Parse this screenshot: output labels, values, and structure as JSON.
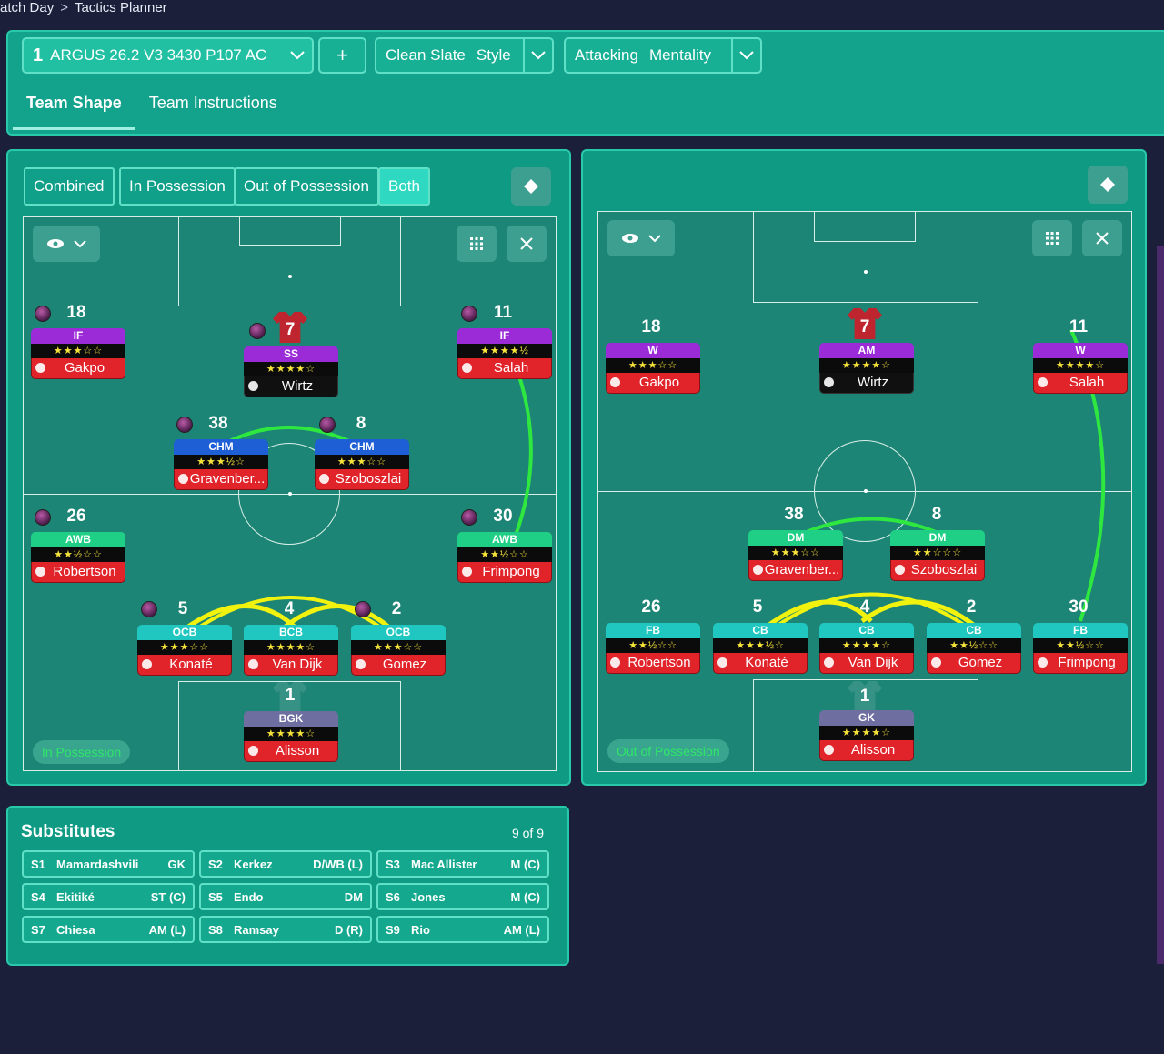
{
  "breadcrumb": {
    "part1": "atch Day",
    "separator": ">",
    "part2": "Tactics Planner"
  },
  "header": {
    "tactic_number": "1",
    "tactic_name": "ARGUS 26.2 V3 3430 P107 AC",
    "add_label": "+",
    "style_value": "Clean Slate",
    "style_label": "Style",
    "mentality_value": "Attacking",
    "mentality_label": "Mentality",
    "tabs": [
      "Team Shape",
      "Team Instructions"
    ]
  },
  "view_toggle": {
    "options": [
      "Combined",
      "In Possession",
      "Out of Possession",
      "Both"
    ],
    "selected": "Both"
  },
  "pitch_left": {
    "phase_label": "In Possession",
    "players": [
      {
        "num": "18",
        "role": "IF",
        "stars": "★★★☆☆",
        "name": "Gakpo",
        "role_color": "#9b2bd6"
      },
      {
        "num": "7",
        "role": "SS",
        "stars": "★★★★☆",
        "name": "Wirtz",
        "role_color": "#9b2bd6"
      },
      {
        "num": "11",
        "role": "IF",
        "stars": "★★★★½",
        "name": "Salah",
        "role_color": "#9b2bd6"
      },
      {
        "num": "38",
        "role": "CHM",
        "stars": "★★★½☆",
        "name": "Gravenber...",
        "role_color": "#1f5fd6"
      },
      {
        "num": "8",
        "role": "CHM",
        "stars": "★★★☆☆",
        "name": "Szoboszlai",
        "role_color": "#1f5fd6"
      },
      {
        "num": "26",
        "role": "AWB",
        "stars": "★★½☆☆",
        "name": "Robertson",
        "role_color": "#1fcf86"
      },
      {
        "num": "30",
        "role": "AWB",
        "stars": "★★½☆☆",
        "name": "Frimpong",
        "role_color": "#1fcf86"
      },
      {
        "num": "5",
        "role": "OCB",
        "stars": "★★★☆☆",
        "name": "Konaté",
        "role_color": "#1fc7c0"
      },
      {
        "num": "4",
        "role": "BCB",
        "stars": "★★★★☆",
        "name": "Van Dijk",
        "role_color": "#1fc7c0"
      },
      {
        "num": "2",
        "role": "OCB",
        "stars": "★★★☆☆",
        "name": "Gomez",
        "role_color": "#1fc7c0"
      },
      {
        "num": "1",
        "role": "BGK",
        "stars": "★★★★☆",
        "name": "Alisson",
        "role_color": "#6f6ea0"
      }
    ]
  },
  "pitch_right": {
    "phase_label": "Out of Possession",
    "players": [
      {
        "num": "18",
        "role": "W",
        "stars": "★★★☆☆",
        "name": "Gakpo",
        "role_color": "#9b2bd6"
      },
      {
        "num": "7",
        "role": "AM",
        "stars": "★★★★☆",
        "name": "Wirtz",
        "role_color": "#9b2bd6"
      },
      {
        "num": "11",
        "role": "W",
        "stars": "★★★★☆",
        "name": "Salah",
        "role_color": "#9b2bd6"
      },
      {
        "num": "38",
        "role": "DM",
        "stars": "★★★☆☆",
        "name": "Gravenber...",
        "role_color": "#1fcf86"
      },
      {
        "num": "8",
        "role": "DM",
        "stars": "★★☆☆☆",
        "name": "Szoboszlai",
        "role_color": "#1fcf86"
      },
      {
        "num": "26",
        "role": "FB",
        "stars": "★★½☆☆",
        "name": "Robertson",
        "role_color": "#1fc7c0"
      },
      {
        "num": "5",
        "role": "CB",
        "stars": "★★★½☆",
        "name": "Konaté",
        "role_color": "#1fc7c0"
      },
      {
        "num": "4",
        "role": "CB",
        "stars": "★★★★☆",
        "name": "Van Dijk",
        "role_color": "#1fc7c0"
      },
      {
        "num": "2",
        "role": "CB",
        "stars": "★★½☆☆",
        "name": "Gomez",
        "role_color": "#1fc7c0"
      },
      {
        "num": "30",
        "role": "FB",
        "stars": "★★½☆☆",
        "name": "Frimpong",
        "role_color": "#1fc7c0"
      },
      {
        "num": "1",
        "role": "GK",
        "stars": "★★★★☆",
        "name": "Alisson",
        "role_color": "#6f6ea0"
      }
    ]
  },
  "substitutes": {
    "title": "Substitutes",
    "count": "9 of 9",
    "items": [
      {
        "slot": "S1",
        "name": "Mamardashvili",
        "pos": "GK"
      },
      {
        "slot": "S2",
        "name": "Kerkez",
        "pos": "D/WB (L)"
      },
      {
        "slot": "S3",
        "name": "Mac Allister",
        "pos": "M (C)"
      },
      {
        "slot": "S4",
        "name": "Ekitiké",
        "pos": "ST (C)"
      },
      {
        "slot": "S5",
        "name": "Endo",
        "pos": "DM"
      },
      {
        "slot": "S6",
        "name": "Jones",
        "pos": "M (C)"
      },
      {
        "slot": "S7",
        "name": "Chiesa",
        "pos": "AM (L)"
      },
      {
        "slot": "S8",
        "name": "Ramsay",
        "pos": "D (R)"
      },
      {
        "slot": "S9",
        "name": "Rio",
        "pos": "AM (L)"
      }
    ]
  },
  "icons": {
    "eye": "eye-icon",
    "grid": "grid-icon",
    "expand": "expand-icon",
    "diamond": "diamond-icon",
    "chevron": "chevron-down-icon"
  }
}
